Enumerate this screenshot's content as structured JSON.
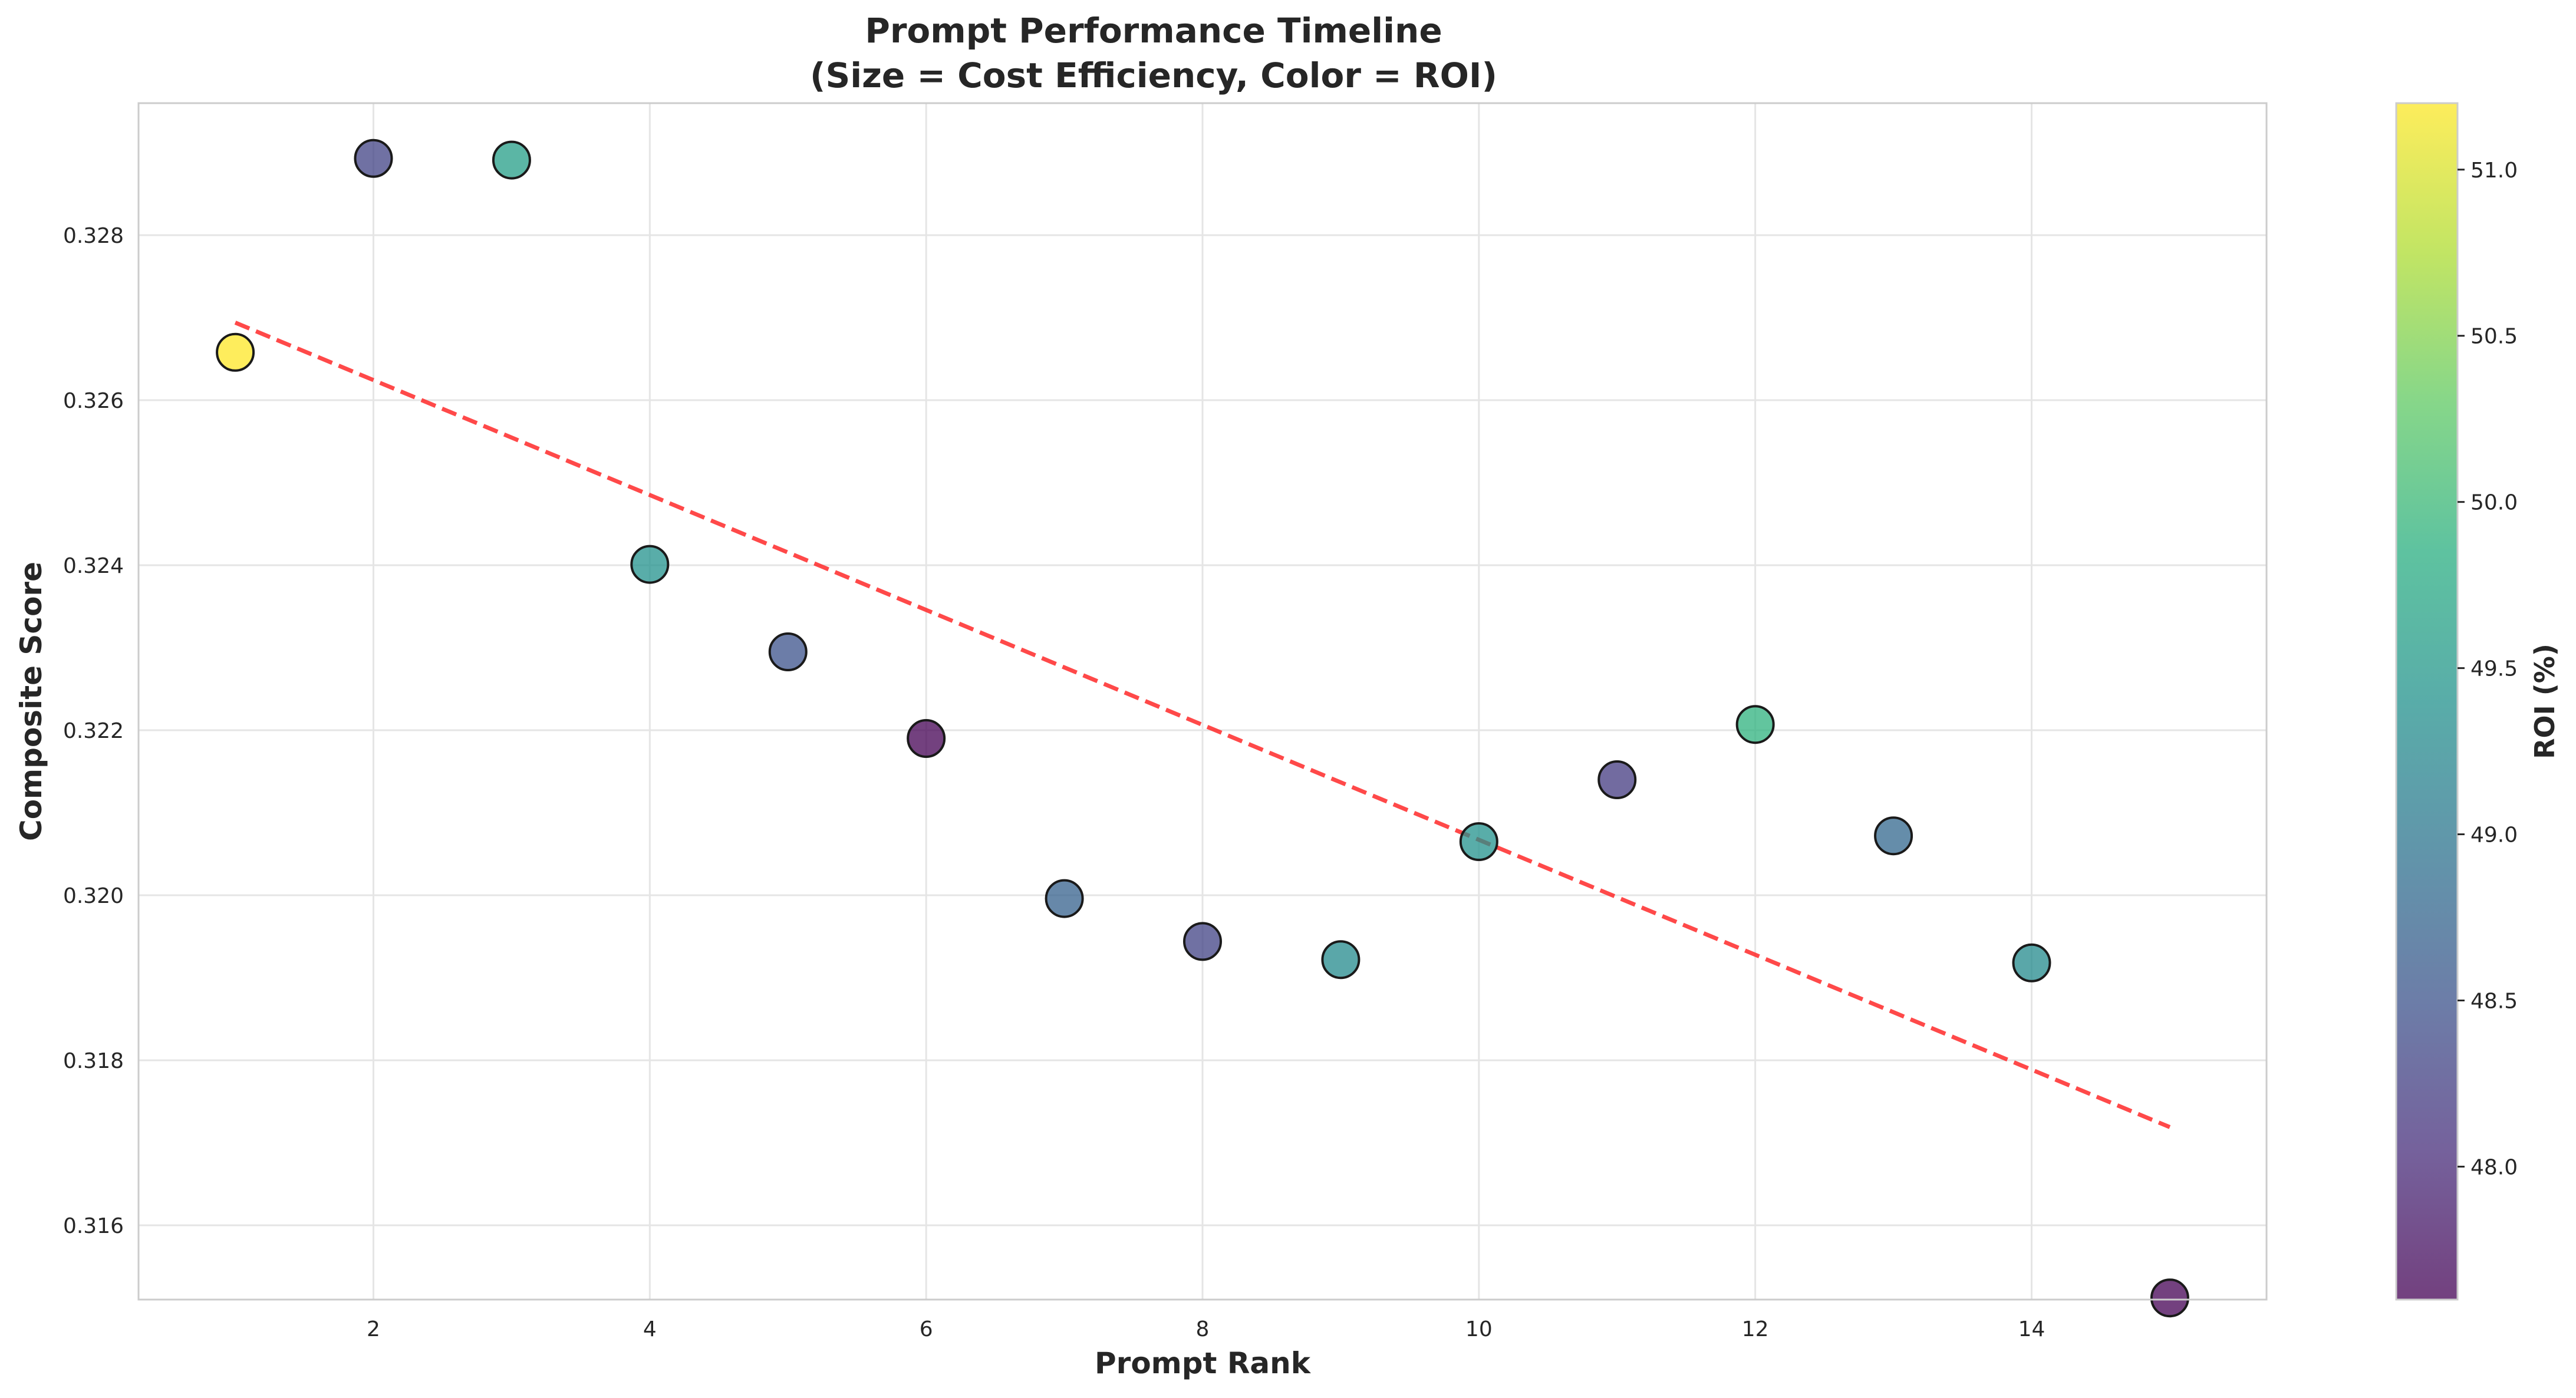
{
  "chart_data": {
    "type": "scatter",
    "title": "Prompt Performance Timeline",
    "subtitle": "(Size = Cost Efficiency, Color = ROI)",
    "xlabel": "Prompt Rank",
    "ylabel": "Composite Score",
    "colorbar_label": "ROI (%)",
    "xlim": [
      0.3,
      15.7
    ],
    "ylim": [
      0.3151,
      0.3296
    ],
    "x_ticks": [
      2,
      4,
      6,
      8,
      10,
      12,
      14
    ],
    "x_tick_labels": [
      "2",
      "4",
      "6",
      "8",
      "10",
      "12",
      "14"
    ],
    "y_ticks": [
      0.316,
      0.318,
      0.32,
      0.322,
      0.324,
      0.326,
      0.328
    ],
    "y_tick_labels": [
      "0.316",
      "0.318",
      "0.320",
      "0.322",
      "0.324",
      "0.326",
      "0.328"
    ],
    "color_range": [
      47.6,
      51.2
    ],
    "colorbar_ticks": [
      48.0,
      48.5,
      49.0,
      49.5,
      50.0,
      50.5,
      51.0
    ],
    "colorbar_tick_labels": [
      "48.0",
      "48.5",
      "49.0",
      "49.5",
      "50.0",
      "50.5",
      "51.0"
    ],
    "colormap": "viridis",
    "grid": true,
    "points": [
      {
        "x": 1,
        "y": 0.32658,
        "roi": 51.2
      },
      {
        "x": 2,
        "y": 0.32893,
        "roi": 48.3
      },
      {
        "x": 3,
        "y": 0.32891,
        "roi": 49.6
      },
      {
        "x": 4,
        "y": 0.32401,
        "roi": 49.4
      },
      {
        "x": 5,
        "y": 0.32295,
        "roi": 48.5
      },
      {
        "x": 6,
        "y": 0.3219,
        "roi": 47.6
      },
      {
        "x": 7,
        "y": 0.31996,
        "roi": 48.7
      },
      {
        "x": 8,
        "y": 0.31944,
        "roi": 48.3
      },
      {
        "x": 9,
        "y": 0.31922,
        "roi": 49.3
      },
      {
        "x": 10,
        "y": 0.32065,
        "roi": 49.4
      },
      {
        "x": 11,
        "y": 0.3214,
        "roi": 48.2
      },
      {
        "x": 12,
        "y": 0.32207,
        "roi": 49.9
      },
      {
        "x": 13,
        "y": 0.32072,
        "roi": 48.8
      },
      {
        "x": 14,
        "y": 0.31918,
        "roi": 49.3
      },
      {
        "x": 15,
        "y": 0.31512,
        "roi": 47.6
      }
    ],
    "trendline": {
      "x": [
        1,
        15
      ],
      "y": [
        0.32694,
        0.31719
      ],
      "color": "#ff2a2a",
      "style": "dashed"
    },
    "marker_edge_color": "#1a1a1a"
  }
}
